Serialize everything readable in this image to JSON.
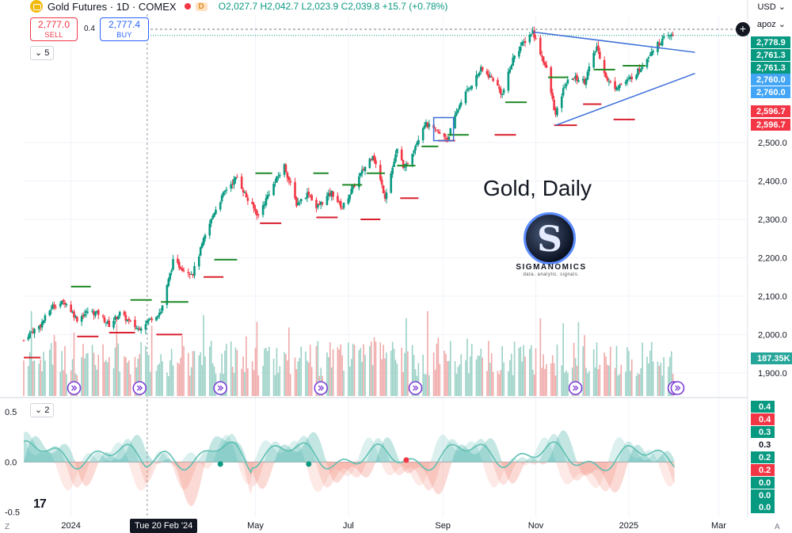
{
  "header": {
    "title": "Gold Futures · 1D · COMEX",
    "ohlc": "O2,027.7 H2,042.7 L2,023.9 C2,039.8 +15.7 (+0.78%)",
    "status_badge": "D"
  },
  "trade": {
    "sell_price": "2,777.0",
    "sell_label": "SELL",
    "spread": "0.4",
    "buy_price": "2,777.4",
    "buy_label": "BUY"
  },
  "panes": {
    "main_collapse": "5",
    "osc_collapse": "2"
  },
  "right_panel": {
    "currency": "USD",
    "user": "apoz"
  },
  "watermark": {
    "title": "Gold, Daily",
    "brand": "SIGMANOMICS",
    "tagline": "data. analytic. signals.",
    "logo_letter": "S"
  },
  "corner_left": "Z",
  "corner_right": "A",
  "crosshair_date": "Tue 20 Feb '24",
  "colors": {
    "up": "#089981",
    "down": "#f23645",
    "pivot_high": "#1e8a27",
    "pivot_low": "#d8202e",
    "trend": "#3b6fd8",
    "volume_up": "#9bd1c6",
    "volume_down": "#f0a9a9",
    "label_blue": "#42a5f5"
  },
  "chart_data": [
    {
      "type": "candlestick",
      "title": "Gold Futures · 1D · COMEX",
      "ylim": [
        1840,
        2830
      ],
      "y_ticks": [
        1900,
        2000,
        2100,
        2200,
        2300,
        2400,
        2500
      ],
      "y_tick_labels": [
        "1,900.0",
        "2,000.0",
        "2,100.0",
        "2,200.0",
        "2,300.0",
        "2,400.0",
        "2,500.0"
      ],
      "x_labels": [
        {
          "label": "2024",
          "date": "2024-01-01"
        },
        {
          "label": "May",
          "date": "2024-05-01"
        },
        {
          "label": "Jul",
          "date": "2024-07-01"
        },
        {
          "label": "Sep",
          "date": "2024-09-01"
        },
        {
          "label": "Nov",
          "date": "2024-11-01"
        },
        {
          "label": "2025",
          "date": "2025-01-01"
        },
        {
          "label": "Mar",
          "date": "2025-03-01"
        }
      ],
      "x_range": [
        "2023-12-01",
        "2025-03-20"
      ],
      "close_path": [
        {
          "date": "2023-12-01",
          "value": 1985
        },
        {
          "date": "2023-12-04",
          "value": 2000
        },
        {
          "date": "2023-12-12",
          "value": 2025
        },
        {
          "date": "2023-12-20",
          "value": 2075
        },
        {
          "date": "2023-12-28",
          "value": 2085
        },
        {
          "date": "2024-01-05",
          "value": 2040
        },
        {
          "date": "2024-01-12",
          "value": 2060
        },
        {
          "date": "2024-01-19",
          "value": 2055
        },
        {
          "date": "2024-01-26",
          "value": 2025
        },
        {
          "date": "2024-02-02",
          "value": 2055
        },
        {
          "date": "2024-02-09",
          "value": 2030
        },
        {
          "date": "2024-02-14",
          "value": 2015
        },
        {
          "date": "2024-02-20",
          "value": 2035
        },
        {
          "date": "2024-02-29",
          "value": 2060
        },
        {
          "date": "2024-03-08",
          "value": 2190
        },
        {
          "date": "2024-03-15",
          "value": 2170
        },
        {
          "date": "2024-03-21",
          "value": 2160
        },
        {
          "date": "2024-03-28",
          "value": 2245
        },
        {
          "date": "2024-04-04",
          "value": 2320
        },
        {
          "date": "2024-04-12",
          "value": 2380
        },
        {
          "date": "2024-04-19",
          "value": 2410
        },
        {
          "date": "2024-04-26",
          "value": 2350
        },
        {
          "date": "2024-05-03",
          "value": 2310
        },
        {
          "date": "2024-05-10",
          "value": 2370
        },
        {
          "date": "2024-05-20",
          "value": 2440
        },
        {
          "date": "2024-05-28",
          "value": 2340
        },
        {
          "date": "2024-06-05",
          "value": 2370
        },
        {
          "date": "2024-06-10",
          "value": 2330
        },
        {
          "date": "2024-06-20",
          "value": 2370
        },
        {
          "date": "2024-06-27",
          "value": 2330
        },
        {
          "date": "2024-07-05",
          "value": 2390
        },
        {
          "date": "2024-07-17",
          "value": 2470
        },
        {
          "date": "2024-07-25",
          "value": 2360
        },
        {
          "date": "2024-08-02",
          "value": 2480
        },
        {
          "date": "2024-08-07",
          "value": 2430
        },
        {
          "date": "2024-08-20",
          "value": 2550
        },
        {
          "date": "2024-08-27",
          "value": 2530
        },
        {
          "date": "2024-09-04",
          "value": 2510
        },
        {
          "date": "2024-09-13",
          "value": 2610
        },
        {
          "date": "2024-09-26",
          "value": 2690
        },
        {
          "date": "2024-10-04",
          "value": 2665
        },
        {
          "date": "2024-10-10",
          "value": 2625
        },
        {
          "date": "2024-10-18",
          "value": 2730
        },
        {
          "date": "2024-10-30",
          "value": 2790
        },
        {
          "date": "2024-11-04",
          "value": 2735
        },
        {
          "date": "2024-11-08",
          "value": 2690
        },
        {
          "date": "2024-11-14",
          "value": 2570
        },
        {
          "date": "2024-11-20",
          "value": 2650
        },
        {
          "date": "2024-11-25",
          "value": 2670
        },
        {
          "date": "2024-12-03",
          "value": 2660
        },
        {
          "date": "2024-12-11",
          "value": 2750
        },
        {
          "date": "2024-12-18",
          "value": 2660
        },
        {
          "date": "2024-12-23",
          "value": 2645
        },
        {
          "date": "2024-12-31",
          "value": 2660
        },
        {
          "date": "2025-01-08",
          "value": 2690
        },
        {
          "date": "2025-01-16",
          "value": 2740
        },
        {
          "date": "2025-01-24",
          "value": 2770
        },
        {
          "date": "2025-01-29",
          "value": 2778.9
        }
      ],
      "pivot_highs": [
        {
          "start": "2024-01-01",
          "end": "2024-01-14",
          "value": 2125
        },
        {
          "start": "2024-02-09",
          "end": "2024-02-23",
          "value": 2090
        },
        {
          "start": "2024-02-29",
          "end": "2024-03-18",
          "value": 2085
        },
        {
          "start": "2024-04-04",
          "end": "2024-04-19",
          "value": 2195
        },
        {
          "start": "2024-05-01",
          "end": "2024-05-12",
          "value": 2420
        },
        {
          "start": "2024-06-08",
          "end": "2024-06-18",
          "value": 2420
        },
        {
          "start": "2024-06-27",
          "end": "2024-07-10",
          "value": 2390
        },
        {
          "start": "2024-07-13",
          "end": "2024-07-25",
          "value": 2420
        },
        {
          "start": "2024-08-02",
          "end": "2024-08-14",
          "value": 2440
        },
        {
          "start": "2024-08-18",
          "end": "2024-08-29",
          "value": 2490
        },
        {
          "start": "2024-09-04",
          "end": "2024-09-18",
          "value": 2520
        },
        {
          "start": "2024-10-12",
          "end": "2024-10-26",
          "value": 2605
        },
        {
          "start": "2024-11-09",
          "end": "2024-11-22",
          "value": 2670
        },
        {
          "start": "2024-12-09",
          "end": "2024-12-23",
          "value": 2690
        },
        {
          "start": "2024-12-28",
          "end": "2025-01-12",
          "value": 2700
        }
      ],
      "pivot_lows": [
        {
          "start": "2023-12-01",
          "end": "2023-12-12",
          "value": 1940
        },
        {
          "start": "2024-01-05",
          "end": "2024-01-19",
          "value": 1995
        },
        {
          "start": "2024-01-26",
          "end": "2024-02-12",
          "value": 2005
        },
        {
          "start": "2024-02-26",
          "end": "2024-03-14",
          "value": 2000
        },
        {
          "start": "2024-03-28",
          "end": "2024-04-10",
          "value": 2150
        },
        {
          "start": "2024-05-04",
          "end": "2024-05-18",
          "value": 2290
        },
        {
          "start": "2024-06-10",
          "end": "2024-06-24",
          "value": 2305
        },
        {
          "start": "2024-07-09",
          "end": "2024-07-22",
          "value": 2300
        },
        {
          "start": "2024-08-04",
          "end": "2024-08-16",
          "value": 2355
        },
        {
          "start": "2024-08-29",
          "end": "2024-09-09",
          "value": 2505
        },
        {
          "start": "2024-10-05",
          "end": "2024-10-19",
          "value": 2520
        },
        {
          "start": "2024-11-13",
          "end": "2024-11-28",
          "value": 2545
        },
        {
          "start": "2024-12-02",
          "end": "2024-12-14",
          "value": 2600
        },
        {
          "start": "2024-12-22",
          "end": "2025-01-05",
          "value": 2560
        }
      ],
      "boxes": [
        {
          "start": "2024-08-26",
          "end": "2024-09-08",
          "low": 2505,
          "high": 2565
        }
      ],
      "trendlines": [
        {
          "start": {
            "date": "2024-10-30",
            "value": 2788
          },
          "end": {
            "date": "2025-02-01",
            "value": 2735
          }
        },
        {
          "start": {
            "date": "2024-11-14",
            "value": 2545
          },
          "end": {
            "date": "2025-02-01",
            "value": 2680
          }
        }
      ],
      "right_labels": [
        {
          "text": "2,778.9",
          "value": 2778.9,
          "style": "up"
        },
        {
          "text": "2,761.3",
          "value": 2761.3,
          "style": "up"
        },
        {
          "text": "2,761.3",
          "value": 2761.3,
          "style": "up"
        },
        {
          "text": "2,760.0",
          "value": 2760.0,
          "style": "blue"
        },
        {
          "text": "2,760.0",
          "value": 2760.0,
          "style": "blue"
        },
        {
          "text": "2,596.7",
          "value": 2596.7,
          "style": "down"
        },
        {
          "text": "2,596.7",
          "value": 2596.7,
          "style": "down"
        }
      ],
      "volume_label": "187.35K",
      "event_marker_dates": [
        "2024-01-03",
        "2024-02-15",
        "2024-04-08",
        "2024-06-13",
        "2024-08-14",
        "2024-11-27",
        "2025-01-31",
        "2025-02-02"
      ]
    },
    {
      "type": "area",
      "name": "oscillator",
      "ylim": [
        -0.55,
        0.62
      ],
      "y_ticks": [
        -0.5,
        0.0,
        0.5
      ],
      "y_tick_labels": [
        "-0.5",
        "0.0",
        "0.5"
      ],
      "positive_color": "#26a69a",
      "negative_color": "#f28b7b",
      "pivot_dots": [
        {
          "date": "2024-04-08",
          "value": -0.02,
          "color": "#089981"
        },
        {
          "date": "2024-06-05",
          "value": -0.02,
          "color": "#089981"
        },
        {
          "date": "2024-08-08",
          "value": 0.02,
          "color": "#f23645"
        }
      ],
      "right_labels": [
        {
          "text": "0.4",
          "bg": "#089981"
        },
        {
          "text": "0.4",
          "bg": "#f23645"
        },
        {
          "text": "0.3",
          "bg": "#089981"
        },
        {
          "text": "0.3",
          "bg": "none"
        },
        {
          "text": "0.2",
          "bg": "#089981"
        },
        {
          "text": "0.2",
          "bg": "#f23645"
        },
        {
          "text": "0.0",
          "bg": "#089981"
        },
        {
          "text": "0.0",
          "bg": "#089981"
        },
        {
          "text": "0.0",
          "bg": "#089981"
        }
      ]
    }
  ]
}
